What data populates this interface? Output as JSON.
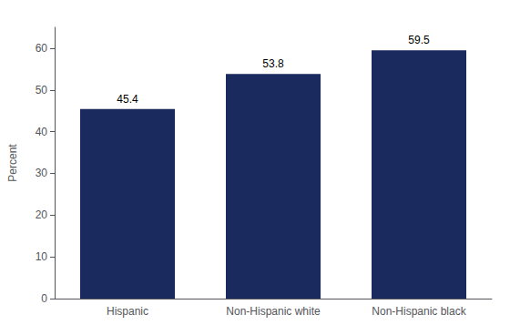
{
  "chart_data": {
    "type": "bar",
    "ylabel": "Percent",
    "categories": [
      "Hispanic",
      "Non-Hispanic white",
      "Non-Hispanic black"
    ],
    "values": [
      45.4,
      53.8,
      59.5
    ],
    "color": "#1a2a5e",
    "ylim": [
      0,
      65
    ],
    "yticks": [
      0,
      10,
      20,
      30,
      40,
      50,
      60
    ],
    "grid": false,
    "data_labels": true
  }
}
